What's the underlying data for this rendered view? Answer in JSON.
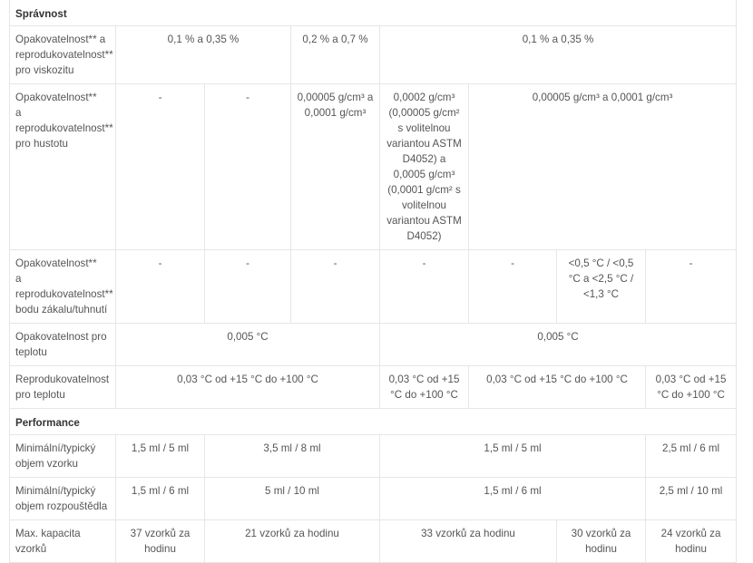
{
  "sections": [
    {
      "title": "Správnost"
    },
    {
      "title": "Performance"
    }
  ],
  "rows": {
    "viscosity": {
      "label": "Opakovatelnost** a reprodukovatelnost** pro viskozitu",
      "cells": [
        "0,1 % a 0,35 %",
        "0,2 % a 0,7 %",
        "0,1 % a 0,35 %"
      ]
    },
    "density": {
      "label_lines": [
        "Opakovatelnost**",
        "a",
        "reprodukovatelnost**",
        "pro hustotu"
      ],
      "cells": [
        "-",
        "-",
        "0,00005 g/cm³ a 0,0001 g/cm³",
        "0,0002 g/cm³ (0,00005 g/cm² s volitelnou variantou ASTM D4052) a 0,0005 g/cm³",
        "(0,0001 g/cm² s volitelnou variantou ASTM D4052)",
        "0,00005 g/cm³ a 0,0001 g/cm³"
      ]
    },
    "cloud_point": {
      "label_lines": [
        "Opakovatelnost**",
        "a",
        "reprodukovatelnost**",
        "bodu zákalu/tuhnutí"
      ],
      "cells": [
        "-",
        "-",
        "-",
        "-",
        "-",
        "<0,5 °C / <0,5 °C a <2,5 °C / <1,3 °C",
        "-"
      ]
    },
    "temp_repeat": {
      "label": "Opakovatelnost pro teplotu",
      "cells": [
        "0,005 °C",
        "0,005 °C"
      ]
    },
    "temp_repro": {
      "label": "Reprodukovatelnost pro teplotu",
      "cells": [
        "0,03 °C od +15 °C do +100 °C",
        "0,03 °C od +15 °C do +100 °C",
        "0,03 °C od +15 °C do +100 °C",
        "0,03 °C od +15 °C do +100 °C"
      ]
    },
    "sample_volume": {
      "label": "Minimální/typický objem vzorku",
      "cells": [
        "1,5 ml / 5 ml",
        "3,5 ml / 8 ml",
        "1,5 ml / 5 ml",
        "2,5 ml / 6 ml"
      ]
    },
    "solvent_volume": {
      "label": "Minimální/typický objem rozpouštědla",
      "cells": [
        "1,5 ml / 6 ml",
        "5 ml / 10 ml",
        "1,5 ml / 6 ml",
        "2,5 ml / 10 ml"
      ]
    },
    "capacity": {
      "label": "Max. kapacita vzorků",
      "cells": [
        "37 vzorků za hodinu",
        "21 vzorků za hodinu",
        "33 vzorků za hodinu",
        "30 vzorků za hodinu",
        "24 vzorků za hodinu"
      ]
    }
  }
}
